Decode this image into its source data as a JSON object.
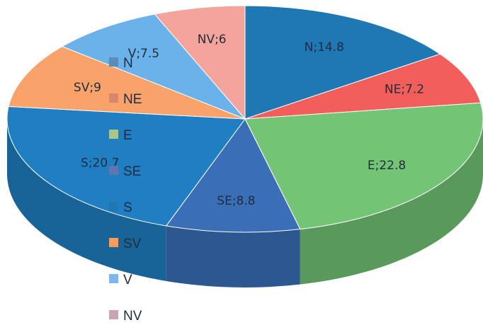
{
  "chart_data": {
    "type": "pie",
    "style": "3d",
    "start_angle_deg": -90,
    "categories": [
      "N",
      "NE",
      "E",
      "SE",
      "S",
      "SV",
      "V",
      "NV"
    ],
    "values": [
      14.8,
      7.2,
      22.8,
      8.8,
      20.7,
      9,
      7.5,
      6
    ],
    "data_labels": [
      "N;14.8",
      "NE;7.2",
      "E;22.8",
      "SE;8.8",
      "S;20.7",
      "SV;9",
      "V;7.5",
      "NV;6"
    ],
    "colors": [
      "#1f77b4",
      "#f25e5c",
      "#74c476",
      "#3a6fb8",
      "#1f7fc2",
      "#f9a36a",
      "#6bb2ea",
      "#f4a49a"
    ],
    "legend": {
      "position": "left-overlay",
      "entries": [
        "N",
        "NE",
        "E",
        "SE",
        "S",
        "SV",
        "V",
        "NV"
      ],
      "colors": [
        "#5b8bb8",
        "#d9876a",
        "#a9c58c",
        "#5d77b0",
        "#1f77b4",
        "#f79d60",
        "#7eb8ea",
        "#c9a5b4"
      ]
    }
  }
}
